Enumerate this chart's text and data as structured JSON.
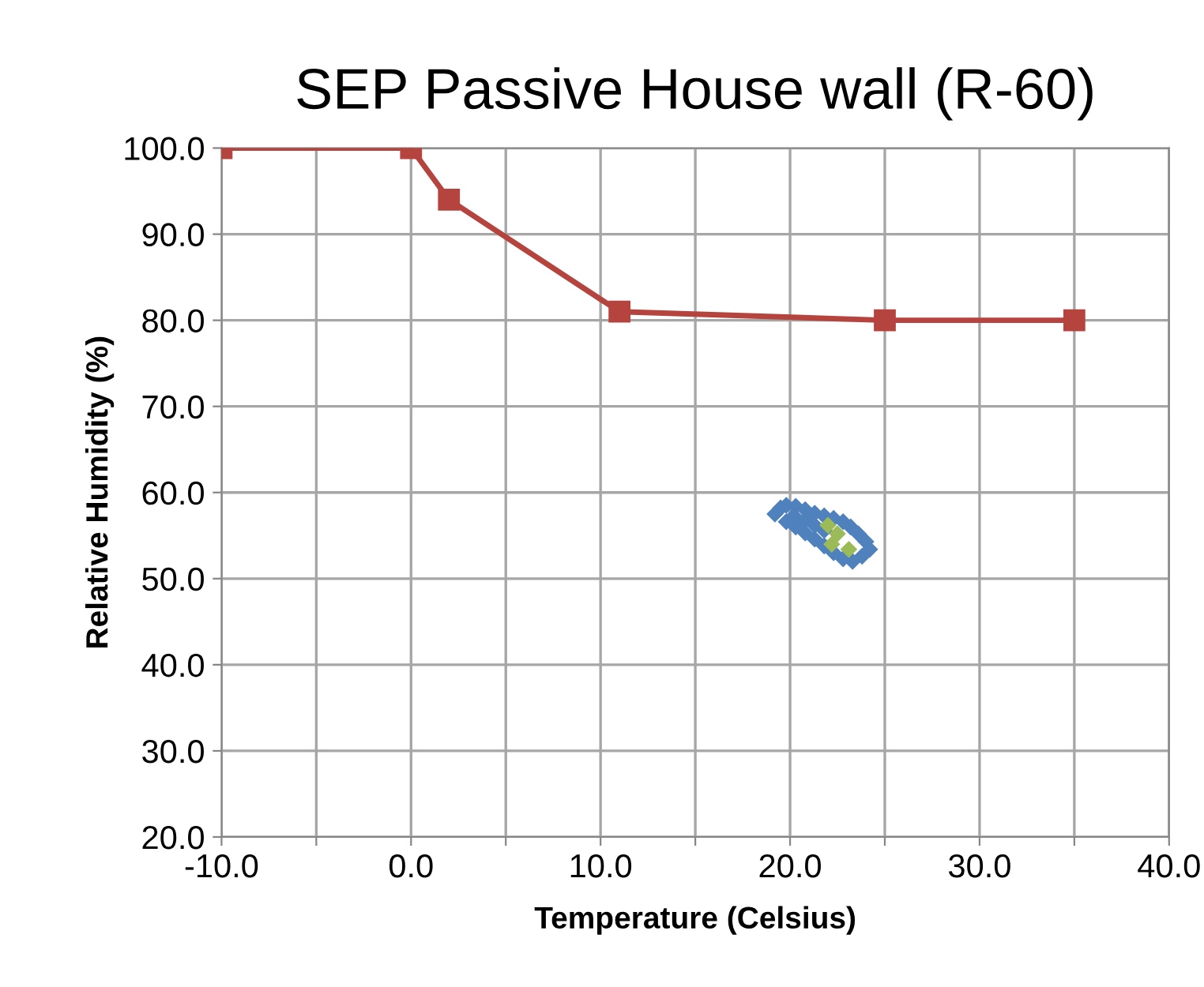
{
  "chart_data": {
    "type": "scatter",
    "title": "SEP Passive House wall (R-60)",
    "xlabel": "Temperature (Celsius)",
    "ylabel": "Relative Humidity (%)",
    "xlim": [
      -10,
      40
    ],
    "ylim": [
      20,
      100
    ],
    "xticks": [
      {
        "value": -10,
        "label": "-10.0"
      },
      {
        "value": -5,
        "label": null
      },
      {
        "value": 0,
        "label": "0.0"
      },
      {
        "value": 5,
        "label": null
      },
      {
        "value": 10,
        "label": "10.0"
      },
      {
        "value": 15,
        "label": null
      },
      {
        "value": 20,
        "label": "20.0"
      },
      {
        "value": 25,
        "label": null
      },
      {
        "value": 30,
        "label": "30.0"
      },
      {
        "value": 35,
        "label": null
      },
      {
        "value": 40,
        "label": "40.0"
      }
    ],
    "yticks": [
      {
        "value": 20,
        "label": "20.0"
      },
      {
        "value": 30,
        "label": "30.0"
      },
      {
        "value": 40,
        "label": "40.0"
      },
      {
        "value": 50,
        "label": "50.0"
      },
      {
        "value": 60,
        "label": "60.0"
      },
      {
        "value": 70,
        "label": "70.0"
      },
      {
        "value": 80,
        "label": "80.0"
      },
      {
        "value": 90,
        "label": "90.0"
      },
      {
        "value": 100,
        "label": "100.0"
      }
    ],
    "grid": true,
    "legend": false,
    "series": [
      {
        "type": "line",
        "marker": "square",
        "color": "#b5443f",
        "x": [
          -10,
          0,
          2,
          11,
          25,
          35
        ],
        "values": [
          100,
          100,
          94,
          81,
          80,
          80
        ]
      },
      {
        "marker": "diamond",
        "color": "#4f81bd",
        "x": [
          19.2,
          19.5,
          19.8,
          20.3,
          20.8,
          21.3,
          21.8,
          22.3,
          22.8,
          23.2,
          23.6,
          24.0,
          24.2,
          23.8,
          23.3,
          22.8,
          22.3,
          21.8,
          21.3,
          20.8,
          20.3,
          19.8,
          20.2,
          20.8,
          21.3,
          21.8
        ],
        "values": [
          57.5,
          58.2,
          58.5,
          58.4,
          58.0,
          57.6,
          57.3,
          57.0,
          56.6,
          56.0,
          55.2,
          54.3,
          53.4,
          52.6,
          52.0,
          52.3,
          53.0,
          53.8,
          54.6,
          55.3,
          56.0,
          56.6,
          57.3,
          56.8,
          56.2,
          55.6
        ]
      },
      {
        "marker": "diamond",
        "color": "#9bbb59",
        "x": [
          22.0,
          22.5,
          22.2,
          23.1
        ],
        "values": [
          56.2,
          55.2,
          54.0,
          53.4
        ]
      }
    ]
  }
}
